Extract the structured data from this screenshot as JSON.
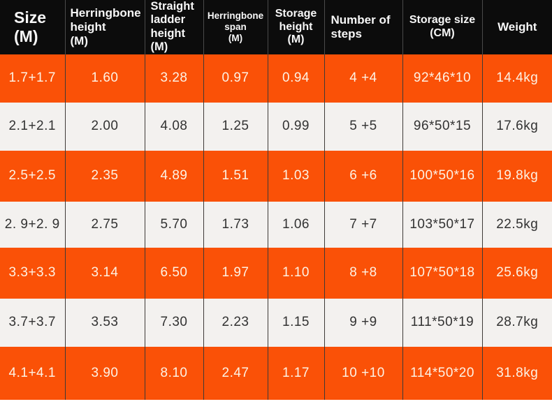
{
  "colors": {
    "header_bg": "#0c0c0c",
    "header_text": "#f7f7f7",
    "orange": "#fa5107",
    "orange_text": "#fdf2e4",
    "light": "#f3f1ef",
    "light_text": "#323232",
    "divider": "#3e3a37"
  },
  "chart_data": {
    "type": "table",
    "title": "",
    "columns": [
      "Size\n(M)",
      "Herringbone\nheight\n(M)",
      "Straight\nladder\nheight (M)",
      "Herringbone\nspan\n(M)",
      "Storage\nheight\n(M)",
      "Number of\nsteps",
      "Storage size\n(CM)",
      "Weight"
    ],
    "rows": [
      [
        "1.7+1.7",
        "1.60",
        "3.28",
        "0.97",
        "0.94",
        "4 +4",
        "92*46*10",
        "14.4kg"
      ],
      [
        "2.1+2.1",
        "2.00",
        "4.08",
        "1.25",
        "0.99",
        "5 +5",
        "96*50*15",
        "17.6kg"
      ],
      [
        "2.5+2.5",
        "2.35",
        "4.89",
        "1.51",
        "1.03",
        "6 +6",
        "100*50*16",
        "19.8kg"
      ],
      [
        "2. 9+2. 9",
        "2.75",
        "5.70",
        "1.73",
        "1.06",
        "7 +7",
        "103*50*17",
        "22.5kg"
      ],
      [
        "3.3+3.3",
        "3.14",
        "6.50",
        "1.97",
        "1.10",
        "8 +8",
        "107*50*18",
        "25.6kg"
      ],
      [
        "3.7+3.7",
        "3.53",
        "7.30",
        "2.23",
        "1.15",
        "9 +9",
        "111*50*19",
        "28.7kg"
      ],
      [
        "4.1+4.1",
        "3.90",
        "8.10",
        "2.47",
        "1.17",
        "10 +10",
        "114*50*20",
        "31.8kg"
      ]
    ],
    "row_background_pattern": [
      "orange",
      "light",
      "orange",
      "light",
      "orange",
      "light",
      "orange"
    ],
    "legend_position": "none",
    "grid": "vertical-dividers-only"
  }
}
